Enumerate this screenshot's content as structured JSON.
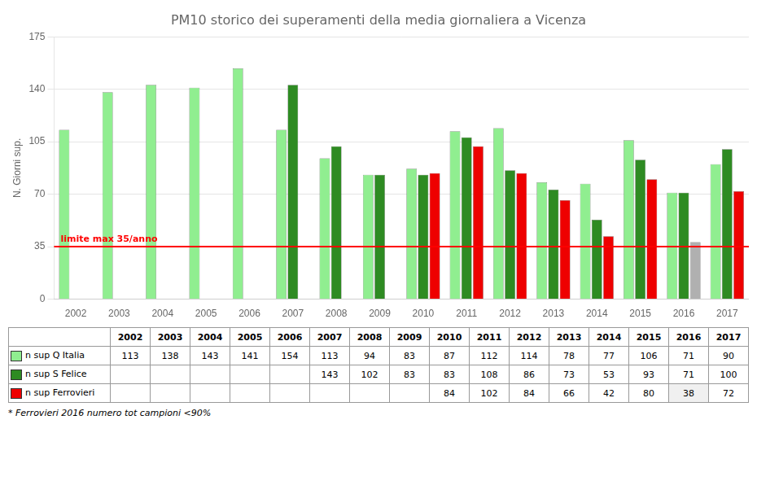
{
  "chart_data": {
    "type": "bar",
    "title": "PM10 storico dei superamenti della media giornaliera a Vicenza",
    "y_label": "N. Giorni sup.",
    "categories": [
      2002,
      2003,
      2004,
      2005,
      2006,
      2007,
      2008,
      2009,
      2010,
      2011,
      2012,
      2013,
      2014,
      2015,
      2016,
      2017
    ],
    "series": [
      {
        "name": "n sup Q Italia",
        "color": "#90EE90",
        "values": [
          113,
          138,
          143,
          141,
          154,
          113,
          94,
          83,
          87,
          112,
          114,
          78,
          77,
          106,
          71,
          90
        ]
      },
      {
        "name": "n sup S Felice",
        "color": "#2E8B22",
        "values": [
          null,
          null,
          null,
          null,
          null,
          143,
          102,
          83,
          83,
          108,
          86,
          73,
          53,
          93,
          71,
          100
        ]
      },
      {
        "name": "n sup Ferrovieri",
        "color": "#EE0000",
        "colors": [
          "#EE0000",
          "#EE0000",
          "#EE0000",
          "#EE0000",
          "#EE0000",
          "#EE0000",
          "#EE0000",
          "#EE0000",
          "#EE0000",
          "#EE0000",
          "#EE0000",
          "#EE0000",
          "#EE0000",
          "#EE0000",
          "#B0B0B0",
          "#EE0000"
        ],
        "values": [
          null,
          null,
          null,
          null,
          null,
          null,
          null,
          null,
          84,
          102,
          84,
          66,
          42,
          80,
          38,
          72
        ]
      }
    ],
    "annotations": [
      {
        "y": 35,
        "label": "limite max 35/anno",
        "color": "#FF0000"
      }
    ],
    "ylim": [
      0,
      175
    ],
    "yticks": [
      0,
      35,
      70,
      105,
      140,
      175
    ],
    "grid": true,
    "footnote": "* Ferrovieri 2016  numero tot campioni <90%"
  }
}
